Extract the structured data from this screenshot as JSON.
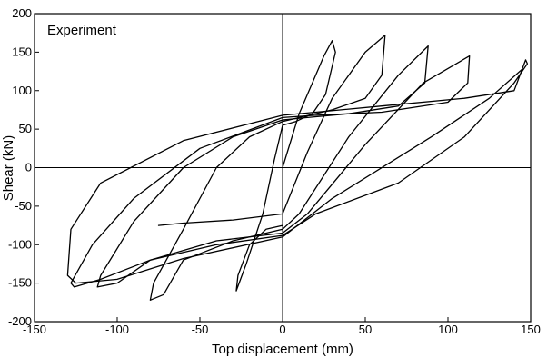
{
  "chart_data": {
    "type": "line",
    "title": "",
    "annotation": "Experiment",
    "xlabel": "Top displacement (mm)",
    "ylabel": "Shear (kN)",
    "xlim": [
      -150,
      150
    ],
    "ylim": [
      -200,
      200
    ],
    "x_ticks": [
      -150,
      -100,
      -50,
      0,
      50,
      100,
      150
    ],
    "y_ticks": [
      -200,
      -150,
      -100,
      -50,
      0,
      50,
      100,
      150,
      200
    ],
    "x_tick_labels": [
      "-150",
      "-100",
      "-50",
      "0",
      "50",
      "100",
      "150"
    ],
    "y_tick_labels": [
      "-200",
      "-150",
      "-100",
      "-50",
      "0",
      "50",
      "100",
      "150",
      "200"
    ],
    "grid": false,
    "zero_lines": true,
    "line_color": "#000000",
    "series": [
      {
        "x": [
          0,
          10,
          25,
          30,
          32,
          26,
          18,
          8,
          0,
          -5,
          -12,
          -22,
          -28,
          -27,
          -20,
          -10,
          0
        ],
        "y": [
          0,
          70,
          145,
          165,
          150,
          95,
          70,
          60,
          55,
          10,
          -60,
          -125,
          -160,
          -140,
          -100,
          -80,
          -75
        ]
      },
      {
        "x": [
          -75,
          -60,
          -30,
          0,
          15,
          30,
          50,
          62,
          60,
          50,
          30,
          10,
          0,
          -20,
          -40,
          -60,
          -78,
          -80,
          -72,
          -60,
          -30,
          0,
          10
        ],
        "y": [
          -75,
          -72,
          -68,
          -60,
          20,
          90,
          150,
          172,
          120,
          90,
          75,
          65,
          60,
          40,
          0,
          -80,
          -150,
          -172,
          -165,
          -120,
          -95,
          -80,
          -60
        ]
      },
      {
        "x": [
          10,
          40,
          70,
          88,
          86,
          70,
          40,
          15,
          0,
          -30,
          -60,
          -90,
          -110,
          -112,
          -100,
          -80,
          -40,
          0,
          15
        ],
        "y": [
          -60,
          40,
          120,
          158,
          110,
          80,
          70,
          65,
          62,
          40,
          0,
          -70,
          -140,
          -155,
          -150,
          -120,
          -95,
          -85,
          -60
        ]
      },
      {
        "x": [
          15,
          50,
          85,
          113,
          112,
          100,
          60,
          20,
          0,
          -50,
          -90,
          -115,
          -128,
          -126,
          -110,
          -80,
          -40,
          0,
          20
        ],
        "y": [
          -60,
          30,
          110,
          145,
          110,
          85,
          72,
          68,
          65,
          25,
          -40,
          -100,
          -150,
          -155,
          -145,
          -120,
          -100,
          -88,
          -60
        ]
      },
      {
        "x": [
          20,
          70,
          110,
          140,
          148,
          147,
          140,
          110,
          60,
          20,
          0,
          -60,
          -110,
          -128,
          -130,
          -125,
          -100,
          -60,
          0,
          30,
          90,
          125,
          145
        ],
        "y": [
          -60,
          -20,
          40,
          110,
          135,
          140,
          100,
          90,
          80,
          72,
          68,
          35,
          -20,
          -80,
          -140,
          -150,
          -145,
          -118,
          -90,
          -40,
          40,
          90,
          128
        ]
      }
    ]
  }
}
